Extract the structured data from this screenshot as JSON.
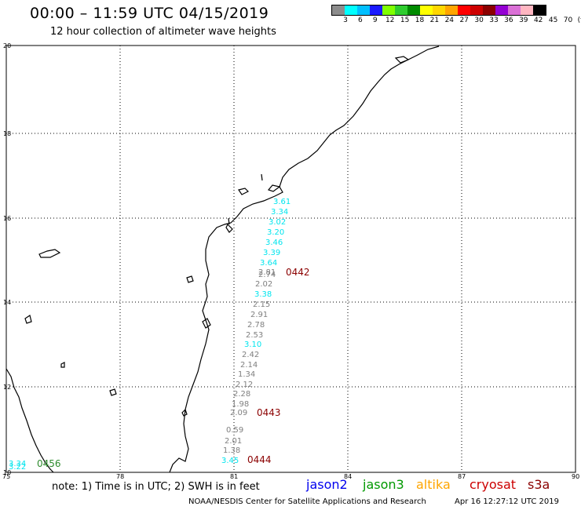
{
  "header": {
    "title": "00:00 – 11:59 UTC 04/15/2019",
    "subtitle": "12 hour collection of altimeter wave heights"
  },
  "color_scale": {
    "colors": [
      "#8c8c8c",
      "#00ffff",
      "#00bfff",
      "#1a1aff",
      "#7fff00",
      "#2ecc2e",
      "#008b00",
      "#ffff00",
      "#ffd700",
      "#ffa500",
      "#ff0000",
      "#cd0000",
      "#8b0000",
      "#9400d3",
      "#da70d6",
      "#ffb6c1",
      "#000000"
    ],
    "labels": [
      "3",
      "6",
      "9",
      "12",
      "15",
      "18",
      "21",
      "24",
      "27",
      "30",
      "33",
      "36",
      "39",
      "42",
      "45",
      "70",
      "(ft)"
    ]
  },
  "map": {
    "lat_labels": [
      "20",
      "18",
      "16",
      "14",
      "12",
      "10"
    ],
    "lon_labels": [
      "75",
      "78",
      "81",
      "84",
      "87",
      "90"
    ],
    "wave_heights": [
      {
        "value": "3.61",
        "color": "#00e5ee"
      },
      {
        "value": "3.34",
        "color": "#00e5ee"
      },
      {
        "value": "3.02",
        "color": "#00e5ee"
      },
      {
        "value": "3.20",
        "color": "#00e5ee"
      },
      {
        "value": "3.46",
        "color": "#00e5ee"
      },
      {
        "value": "3.39",
        "color": "#00e5ee"
      },
      {
        "value": "3.64",
        "color": "#00e5ee"
      },
      {
        "value": "2.81",
        "color": "#808080"
      },
      {
        "value": "2.74",
        "color": "#808080"
      },
      {
        "value": "2.02",
        "color": "#808080"
      },
      {
        "value": "3.38",
        "color": "#00e5ee"
      },
      {
        "value": "2.15",
        "color": "#808080"
      },
      {
        "value": "2.91",
        "color": "#808080"
      },
      {
        "value": "2.78",
        "color": "#808080"
      },
      {
        "value": "2.53",
        "color": "#808080"
      },
      {
        "value": "3.10",
        "color": "#00e5ee"
      },
      {
        "value": "2.42",
        "color": "#808080"
      },
      {
        "value": "2.14",
        "color": "#808080"
      },
      {
        "value": "1.34",
        "color": "#808080"
      },
      {
        "value": "2.12",
        "color": "#808080"
      },
      {
        "value": "2.28",
        "color": "#808080"
      },
      {
        "value": "1.98",
        "color": "#808080"
      },
      {
        "value": "2.09",
        "color": "#808080"
      },
      {
        "value": "0.59",
        "color": "#808080"
      },
      {
        "value": "2.01",
        "color": "#808080"
      },
      {
        "value": "1.38",
        "color": "#808080"
      },
      {
        "value": "3.45",
        "color": "#00e5ee"
      },
      {
        "value": "3.34",
        "color": "#00e5ee"
      },
      {
        "value": "3.22",
        "color": "#00e5ee"
      }
    ],
    "pass_labels": [
      {
        "label": "0442",
        "color": "#8b0000"
      },
      {
        "label": "0443",
        "color": "#8b0000"
      },
      {
        "label": "0444",
        "color": "#8b0000"
      },
      {
        "label": "0456",
        "color": "#2e8b2e"
      }
    ]
  },
  "footer": {
    "note": "note: 1) Time is in UTC; 2) SWH is in feet",
    "missions": [
      {
        "name": "jason2",
        "color": "#0000ee"
      },
      {
        "name": "jason3",
        "color": "#009900"
      },
      {
        "name": "altika",
        "color": "#ffa500"
      },
      {
        "name": "cryosat",
        "color": "#cc0000"
      },
      {
        "name": "s3a",
        "color": "#8b0000"
      }
    ],
    "credit": "NOAA/NESDIS Center for Satellite Applications and Research",
    "timestamp": "Apr 16 12:27:12 UTC 2019"
  }
}
